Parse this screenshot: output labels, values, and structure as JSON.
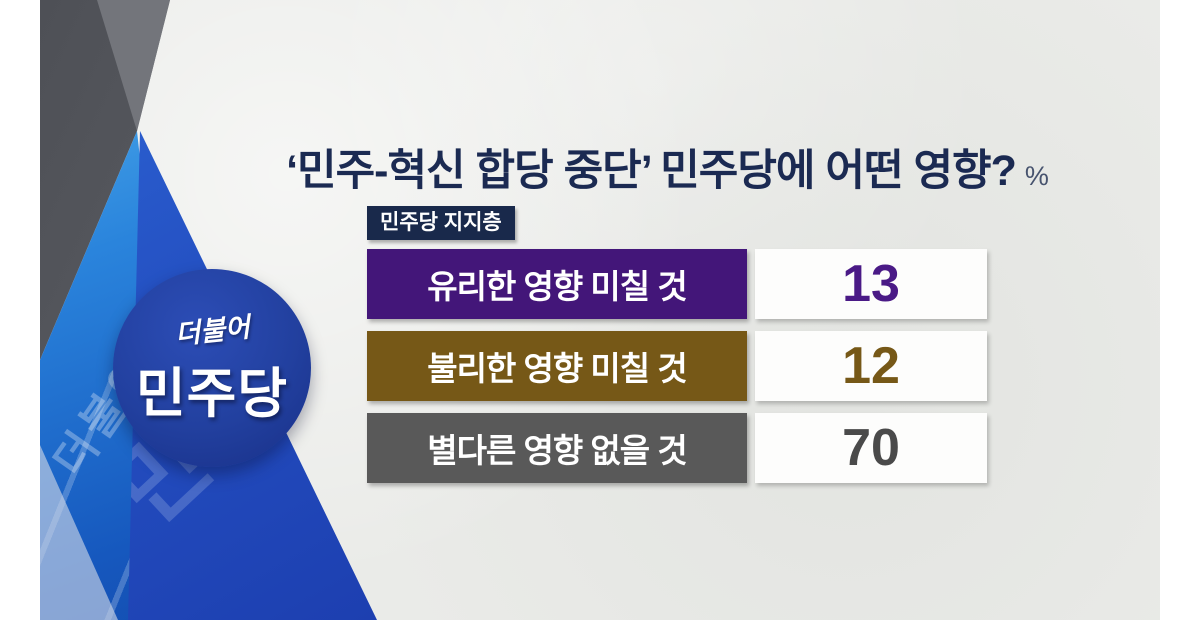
{
  "title": {
    "text": "‘민주-혁신 합당 중단’ 민주당에 어떤 영향?",
    "unit": "%"
  },
  "subgroup_chip": {
    "label": "민주당 지지층"
  },
  "logo": {
    "script_text": "더불어",
    "main_text": "민주당"
  },
  "decor": {
    "watermark_script": "더불어민주당",
    "watermark_flag": "민주당"
  },
  "rows": [
    {
      "label": "유리한 영향 미칠 것",
      "value": "13",
      "bg": "#431679",
      "value_color": "#4a1a86"
    },
    {
      "label": "불리한 영향 미칠 것",
      "value": "12",
      "bg": "#765817",
      "value_color": "#765817"
    },
    {
      "label": "별다른 영향 없을 것",
      "value": "70",
      "bg": "#595959",
      "value_color": "#4a4a4a"
    }
  ],
  "colors": {
    "title_text": "#1b2a52",
    "chip_bg": "#19294b",
    "paper_bg": "#eaebe8",
    "value_box_bg": "#fdfdfc",
    "logo_circle": "#22409f",
    "decor_gray": "#4e5056",
    "decor_bright_blue": "#2a84dc",
    "decor_flag_blue": "#2450c2"
  },
  "chart_data": {
    "type": "bar",
    "title": "‘민주-혁신 합당 중단’ 민주당에 어떤 영향?",
    "unit": "%",
    "group": "민주당 지지층",
    "categories": [
      "유리한 영향 미칠 것",
      "불리한 영향 미칠 것",
      "별다른 영향 없을 것"
    ],
    "values": [
      13,
      12,
      70
    ],
    "colors": [
      "#431679",
      "#765817",
      "#595959"
    ],
    "legend_position": "none",
    "grid": false,
    "value_range": [
      0,
      100
    ]
  }
}
